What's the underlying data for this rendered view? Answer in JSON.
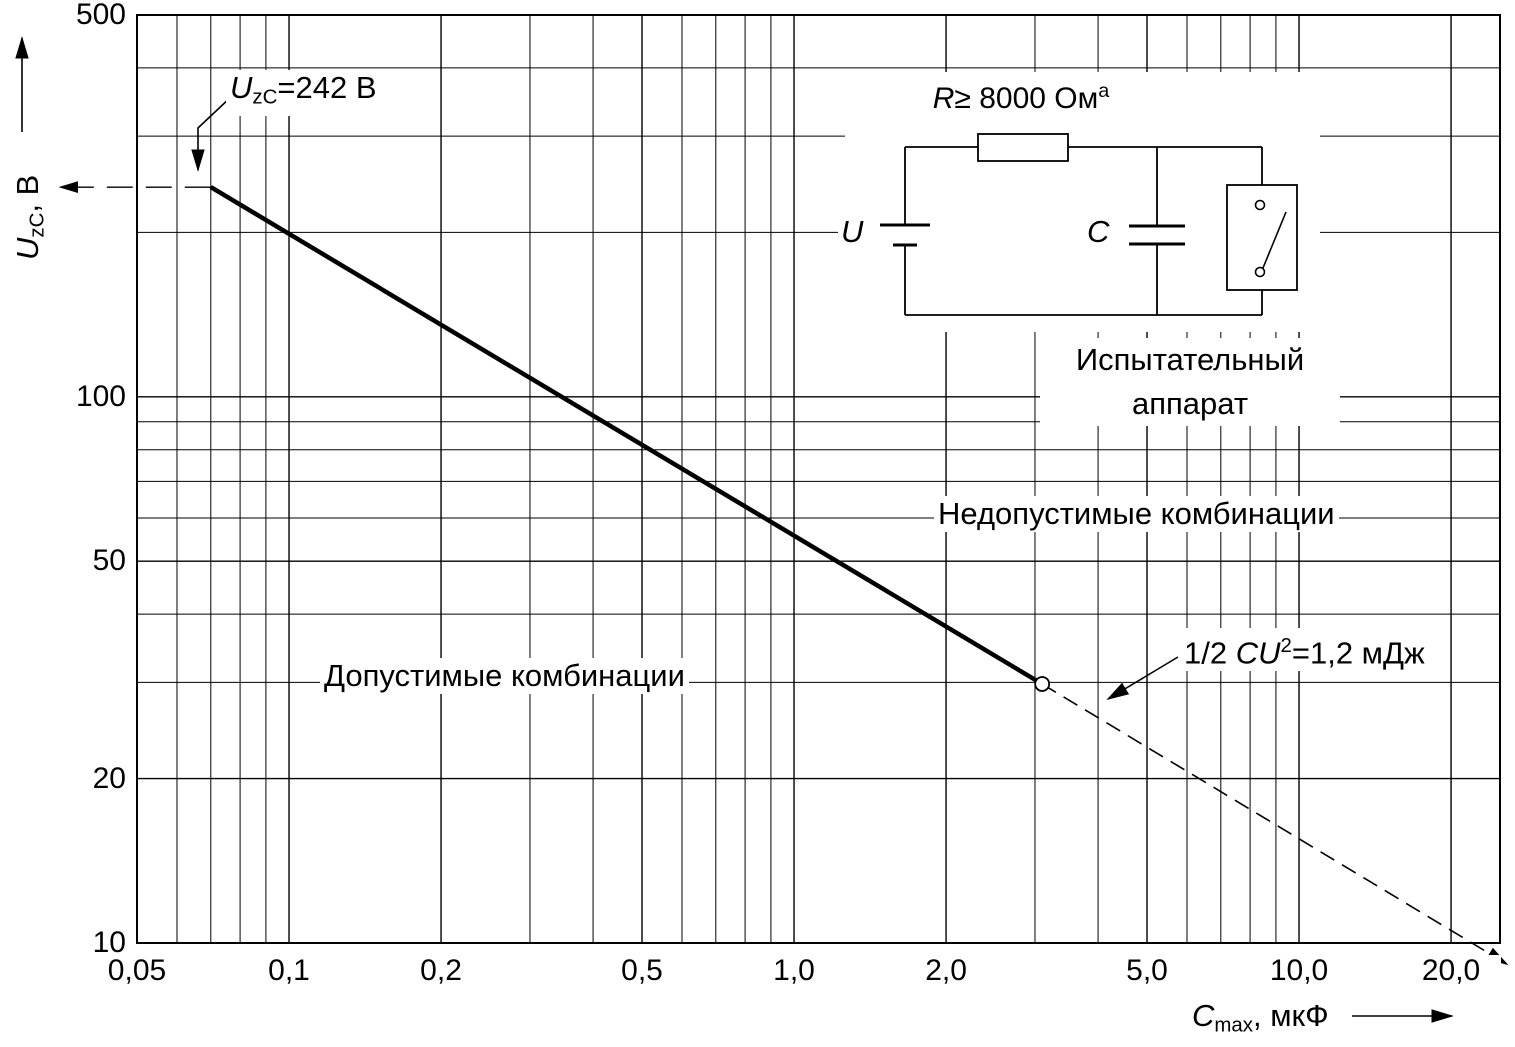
{
  "chart_data": {
    "type": "line",
    "scale": "log-log",
    "grid": "on",
    "x_axis": {
      "symbol": "C",
      "symbol_sub": "max",
      "unit_suffix": ", мкФ",
      "min": 0.05,
      "max": 25,
      "ticks": [
        {
          "v": 0.05,
          "label": "0,05"
        },
        {
          "v": 0.1,
          "label": "0,1"
        },
        {
          "v": 0.2,
          "label": "0,2"
        },
        {
          "v": 0.5,
          "label": "0,5"
        },
        {
          "v": 1,
          "label": "1,0"
        },
        {
          "v": 2,
          "label": "2,0"
        },
        {
          "v": 5,
          "label": "5,0"
        },
        {
          "v": 10,
          "label": "10,0"
        },
        {
          "v": 20,
          "label": "20,0"
        }
      ],
      "minor_gridlines": [
        0.06,
        0.07,
        0.08,
        0.09,
        0.3,
        0.4,
        0.6,
        0.7,
        0.8,
        0.9,
        3,
        4,
        6,
        7,
        8,
        9
      ]
    },
    "y_axis": {
      "symbol": "U",
      "symbol_sub": "zC",
      "unit_suffix": ", В",
      "min": 10,
      "max": 500,
      "ticks": [
        {
          "v": 500,
          "label": "500"
        },
        {
          "v": 100,
          "label": "100"
        },
        {
          "v": 50,
          "label": "50"
        },
        {
          "v": 20,
          "label": "20"
        },
        {
          "v": 10,
          "label": "10"
        }
      ],
      "minor_gridlines": [
        30,
        40,
        60,
        70,
        80,
        90,
        200,
        300,
        400
      ]
    },
    "series": [
      {
        "name": "permissible-limit-solid",
        "style": "solid",
        "points": [
          [
            0.07,
            242
          ],
          [
            3.1,
            29.8
          ]
        ]
      },
      {
        "name": "permissible-limit-extrapolated",
        "style": "dashed",
        "arrow_end": true,
        "points": [
          [
            3.1,
            29.8
          ],
          [
            25.8,
            9.15
          ]
        ]
      }
    ],
    "marker": {
      "x": 3.1,
      "y": 29.8,
      "shape": "open-circle"
    },
    "reference_level": {
      "y": 242,
      "x_from": 0.07
    }
  },
  "axis_labels": {
    "y": {
      "sym": "U",
      "sub": "zC",
      "rest": ", В"
    },
    "x": {
      "sym": "C",
      "sub": "max",
      "rest": ", мкФ"
    }
  },
  "annotations": {
    "uzc_value": {
      "sym": "U",
      "sub": "zC",
      "rest": "=242 В"
    },
    "energy": {
      "pre": "1/2 ",
      "c": "C",
      "u": "U",
      "sup": "2",
      "rest": "=1,2 мДж"
    },
    "region_allowed": "Допустимые комбинации",
    "region_forbidden": "Недопустимые комбинации"
  },
  "circuit": {
    "resistor": {
      "sym": "R",
      "rest": "≥ 8000 Ом",
      "sup": "a"
    },
    "source_label": "U",
    "capacitor_label": "C",
    "apparatus_line1": "Испытательный",
    "apparatus_line2": "аппарат"
  }
}
